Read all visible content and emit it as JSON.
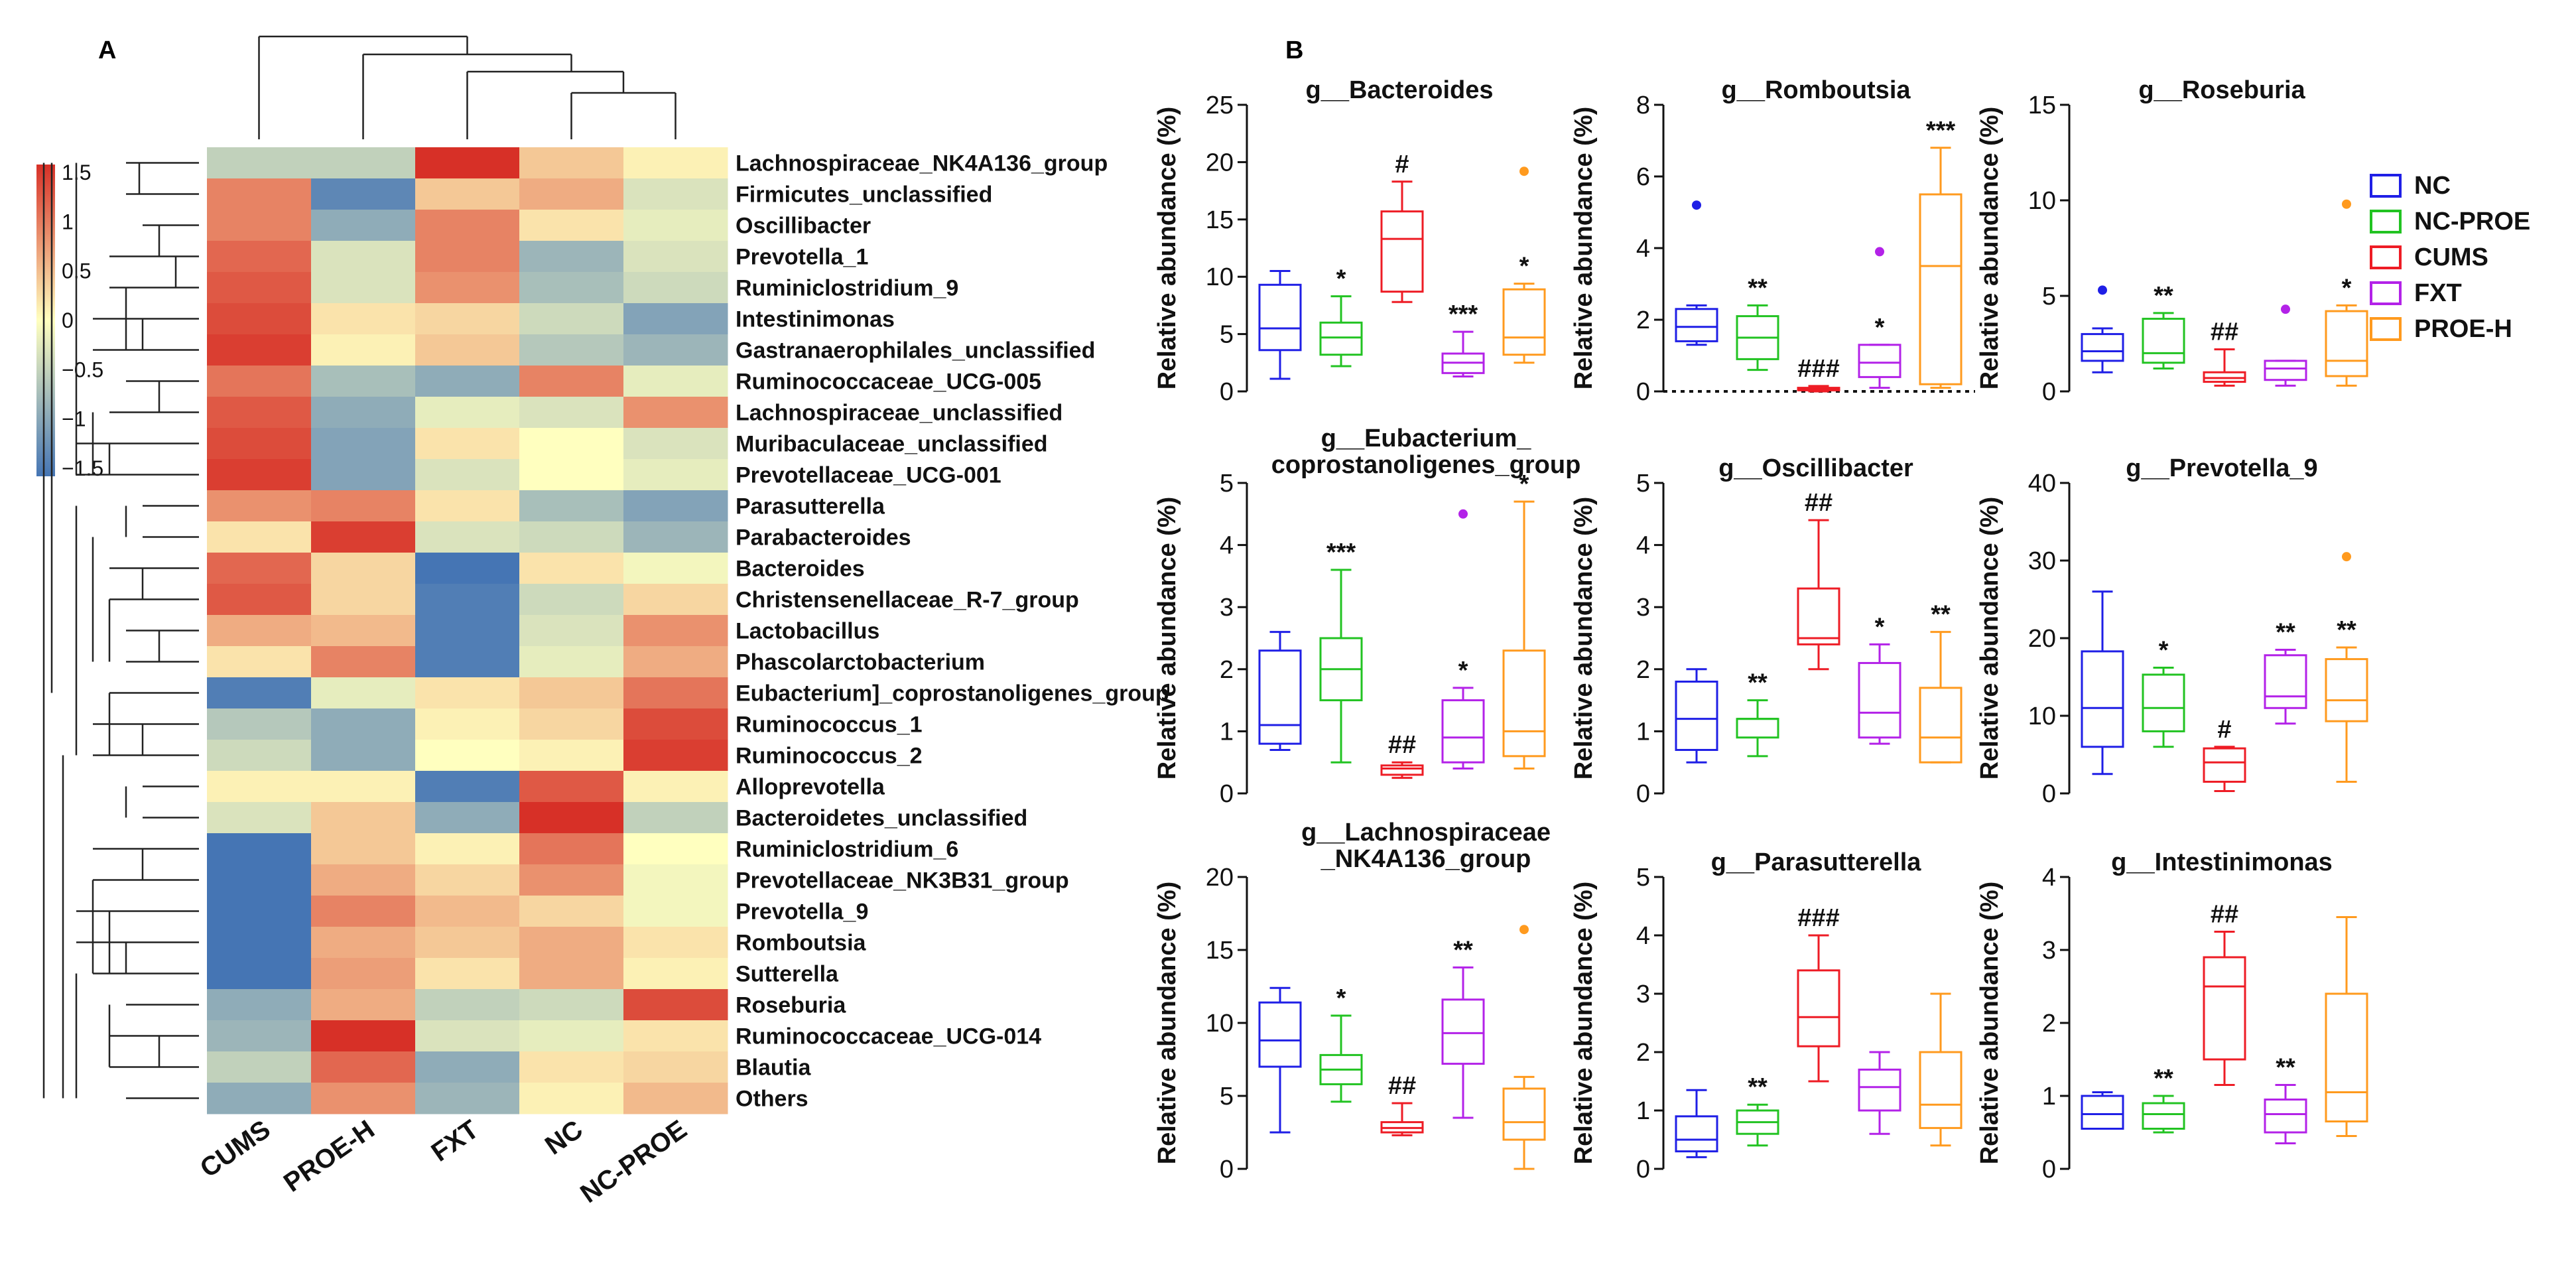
{
  "panels": {
    "a": "A",
    "b": "B"
  },
  "chart_data": [
    {
      "type": "heatmap",
      "title": "",
      "columns": [
        "CUMS",
        "PROE-H",
        "FXT",
        "NC",
        "NC-PROE"
      ],
      "rows": [
        "Lachnospiraceae_NK4A136_group",
        "Firmicutes_unclassified",
        "Oscillibacter",
        "Prevotella_1",
        "Ruminiclostridium_9",
        "Intestinimonas",
        "Gastranaerophilales_unclassified",
        "Ruminococcaceae_UCG-005",
        "Lachnospiraceae_unclassified",
        "Muribaculaceae_unclassified",
        "Prevotellaceae_UCG-001",
        "Parasutterella",
        "Parabacteroides",
        "Bacteroides",
        "Christensenellaceae_R-7_group",
        "Lactobacillus",
        "Phascolarctobacterium",
        "Eubacterium]_coprostanoligenes_group",
        "Ruminococcus_1",
        "Ruminococcus_2",
        "Alloprevotella",
        "Bacteroidetes_unclassified",
        "Ruminiclostridium_6",
        "Prevotellaceae_NK3B31_group",
        "Prevotella_9",
        "Romboutsia",
        "Sutterella",
        "Roseburia",
        "Ruminococcaceae_UCG-014",
        "Blautia",
        "Others"
      ],
      "values": [
        [
          -0.5,
          -0.5,
          1.5,
          0.4,
          0.1
        ],
        [
          0.9,
          -1.3,
          0.4,
          0.6,
          -0.3
        ],
        [
          0.9,
          -0.9,
          0.9,
          0.2,
          -0.2
        ],
        [
          1.1,
          -0.3,
          0.9,
          -0.8,
          -0.3
        ],
        [
          1.2,
          -0.3,
          0.8,
          -0.7,
          -0.4
        ],
        [
          1.3,
          0.2,
          0.3,
          -0.4,
          -1.0
        ],
        [
          1.4,
          0.1,
          0.4,
          -0.6,
          -0.8
        ],
        [
          1.0,
          -0.7,
          -0.9,
          0.9,
          -0.2
        ],
        [
          1.2,
          -0.9,
          -0.2,
          -0.3,
          0.8
        ],
        [
          1.3,
          -1.0,
          0.2,
          0.0,
          -0.3
        ],
        [
          1.4,
          -1.0,
          -0.3,
          0.0,
          -0.2
        ],
        [
          0.8,
          0.9,
          0.2,
          -0.7,
          -1.0
        ],
        [
          0.2,
          1.4,
          -0.3,
          -0.4,
          -0.8
        ],
        [
          1.1,
          0.3,
          -1.5,
          0.2,
          -0.1
        ],
        [
          1.2,
          0.3,
          -1.4,
          -0.4,
          0.3
        ],
        [
          0.6,
          0.5,
          -1.4,
          -0.3,
          0.8
        ],
        [
          0.2,
          0.9,
          -1.4,
          -0.2,
          0.6
        ],
        [
          -1.4,
          -0.2,
          0.2,
          0.4,
          1.0
        ],
        [
          -0.6,
          -0.9,
          0.1,
          0.3,
          1.3
        ],
        [
          -0.4,
          -0.9,
          0.0,
          0.1,
          1.4
        ],
        [
          0.1,
          0.1,
          -1.4,
          1.2,
          0.1
        ],
        [
          -0.3,
          0.4,
          -0.9,
          1.5,
          -0.5
        ],
        [
          -1.5,
          0.4,
          0.1,
          1.0,
          0.0
        ],
        [
          -1.5,
          0.6,
          0.3,
          0.8,
          -0.1
        ],
        [
          -1.5,
          0.9,
          0.5,
          0.3,
          -0.1
        ],
        [
          -1.6,
          0.6,
          0.4,
          0.6,
          0.2
        ],
        [
          -1.6,
          0.7,
          0.2,
          0.6,
          0.1
        ],
        [
          -0.9,
          0.6,
          -0.5,
          -0.4,
          1.3
        ],
        [
          -0.8,
          1.6,
          -0.3,
          -0.2,
          0.2
        ],
        [
          -0.5,
          1.1,
          -0.9,
          0.2,
          0.3
        ],
        [
          -0.9,
          0.8,
          -0.8,
          0.1,
          0.5
        ]
      ],
      "color_scale": {
        "ticks": [
          "1.5",
          "1",
          "0.5",
          "0",
          "−0.5",
          "−1",
          "−1.5"
        ],
        "low": "#4575b4",
        "mid": "#ffffbf",
        "high": "#d73027",
        "min": -1.5,
        "max": 1.5
      },
      "row_dendrogram": {
        "leaves": 31
      },
      "column_dendrogram": {
        "leaves": 5
      }
    },
    {
      "type": "box",
      "ylabel": "Relative abundance (%)",
      "groups": [
        "NC",
        "NC-PROE",
        "CUMS",
        "FXT",
        "PROE-H"
      ],
      "group_colors": [
        "#1f1fe6",
        "#22c322",
        "#ee1c25",
        "#b322e8",
        "#ff9a1e"
      ],
      "legend": {
        "position": "right",
        "entries": [
          "NC",
          "NC-PROE",
          "CUMS",
          "FXT",
          "PROE-H"
        ]
      },
      "panels": [
        {
          "title": "g__Bacteroides",
          "ylim": [
            0,
            25
          ],
          "ticks": [
            0,
            5,
            10,
            15,
            20,
            25
          ],
          "boxes": [
            {
              "min": 1.1,
              "q1": 3.6,
              "median": 5.5,
              "q3": 9.3,
              "max": 10.5,
              "outliers": [],
              "mark": ""
            },
            {
              "min": 2.2,
              "q1": 3.2,
              "median": 4.7,
              "q3": 6.0,
              "max": 8.3,
              "outliers": [],
              "mark": "*"
            },
            {
              "min": 7.8,
              "q1": 8.7,
              "median": 13.3,
              "q3": 15.7,
              "max": 18.3,
              "outliers": [],
              "mark": "#"
            },
            {
              "min": 1.3,
              "q1": 1.6,
              "median": 2.5,
              "q3": 3.3,
              "max": 5.2,
              "outliers": [],
              "mark": "***"
            },
            {
              "min": 2.5,
              "q1": 3.2,
              "median": 4.7,
              "q3": 8.9,
              "max": 9.4,
              "outliers": [
                19.2
              ],
              "mark": "*"
            }
          ]
        },
        {
          "title": "g__Romboutsia",
          "ylim": [
            0,
            8
          ],
          "ticks": [
            0,
            2,
            4,
            6,
            8
          ],
          "dashed_zero": true,
          "boxes": [
            {
              "min": 1.3,
              "q1": 1.4,
              "median": 1.8,
              "q3": 2.3,
              "max": 2.4,
              "outliers": [
                5.2
              ],
              "mark": ""
            },
            {
              "min": 0.6,
              "q1": 0.9,
              "median": 1.5,
              "q3": 2.1,
              "max": 2.4,
              "outliers": [],
              "mark": "**"
            },
            {
              "min": 0.0,
              "q1": 0.03,
              "median": 0.06,
              "q3": 0.1,
              "max": 0.15,
              "outliers": [],
              "mark": "###"
            },
            {
              "min": 0.1,
              "q1": 0.4,
              "median": 0.8,
              "q3": 1.3,
              "max": 1.3,
              "outliers": [
                3.9
              ],
              "mark": "*"
            },
            {
              "min": 0.1,
              "q1": 0.2,
              "median": 3.5,
              "q3": 5.5,
              "max": 6.8,
              "outliers": [],
              "mark": "***"
            }
          ]
        },
        {
          "title": "g__Roseburia",
          "ylim": [
            0,
            15
          ],
          "ticks": [
            0,
            5,
            10,
            15
          ],
          "boxes": [
            {
              "min": 1.0,
              "q1": 1.6,
              "median": 2.1,
              "q3": 3.0,
              "max": 3.3,
              "outliers": [
                5.3
              ],
              "mark": ""
            },
            {
              "min": 1.2,
              "q1": 1.5,
              "median": 2.0,
              "q3": 3.8,
              "max": 4.1,
              "outliers": [],
              "mark": "**"
            },
            {
              "min": 0.3,
              "q1": 0.5,
              "median": 0.7,
              "q3": 1.0,
              "max": 2.2,
              "outliers": [],
              "mark": "##"
            },
            {
              "min": 0.3,
              "q1": 0.6,
              "median": 1.2,
              "q3": 1.6,
              "max": 1.6,
              "outliers": [
                4.3
              ],
              "mark": ""
            },
            {
              "min": 0.3,
              "q1": 0.8,
              "median": 1.6,
              "q3": 4.2,
              "max": 4.5,
              "outliers": [
                9.8
              ],
              "mark": "*"
            }
          ]
        },
        {
          "title": "g__Eubacterium_",
          "title2": "coprostanoligenes_group",
          "ylim": [
            0,
            5
          ],
          "ticks": [
            0,
            1,
            2,
            3,
            4,
            5
          ],
          "boxes": [
            {
              "min": 0.7,
              "q1": 0.8,
              "median": 1.1,
              "q3": 2.3,
              "max": 2.6,
              "outliers": [],
              "mark": ""
            },
            {
              "min": 0.5,
              "q1": 1.5,
              "median": 2.0,
              "q3": 2.5,
              "max": 3.6,
              "outliers": [],
              "mark": "***"
            },
            {
              "min": 0.25,
              "q1": 0.3,
              "median": 0.4,
              "q3": 0.45,
              "max": 0.5,
              "outliers": [],
              "mark": "##"
            },
            {
              "min": 0.4,
              "q1": 0.5,
              "median": 0.9,
              "q3": 1.5,
              "max": 1.7,
              "outliers": [
                4.5
              ],
              "mark": "*"
            },
            {
              "min": 0.4,
              "q1": 0.6,
              "median": 1.0,
              "q3": 2.3,
              "max": 4.7,
              "outliers": [],
              "mark": "*"
            }
          ]
        },
        {
          "title": "g__Oscillibacter",
          "ylim": [
            0,
            5
          ],
          "ticks": [
            0,
            1,
            2,
            3,
            4,
            5
          ],
          "boxes": [
            {
              "min": 0.5,
              "q1": 0.7,
              "median": 1.2,
              "q3": 1.8,
              "max": 2.0,
              "outliers": [],
              "mark": ""
            },
            {
              "min": 0.6,
              "q1": 0.9,
              "median": 1.2,
              "q3": 1.2,
              "max": 1.5,
              "outliers": [],
              "mark": "**"
            },
            {
              "min": 2.0,
              "q1": 2.4,
              "median": 2.5,
              "q3": 3.3,
              "max": 4.4,
              "outliers": [],
              "mark": "##"
            },
            {
              "min": 0.8,
              "q1": 0.9,
              "median": 1.3,
              "q3": 2.1,
              "max": 2.4,
              "outliers": [],
              "mark": "*"
            },
            {
              "min": 0.5,
              "q1": 0.5,
              "median": 0.9,
              "q3": 1.7,
              "max": 2.6,
              "outliers": [],
              "mark": "**"
            }
          ]
        },
        {
          "title": "g__Prevotella_9",
          "ylim": [
            0,
            40
          ],
          "ticks": [
            0,
            10,
            20,
            30,
            40
          ],
          "boxes": [
            {
              "min": 2.5,
              "q1": 6.0,
              "median": 11.0,
              "q3": 18.3,
              "max": 26.0,
              "outliers": [],
              "mark": ""
            },
            {
              "min": 6.0,
              "q1": 8.0,
              "median": 11.0,
              "q3": 15.3,
              "max": 16.2,
              "outliers": [],
              "mark": "*"
            },
            {
              "min": 0.3,
              "q1": 1.5,
              "median": 4.0,
              "q3": 5.8,
              "max": 6.0,
              "outliers": [],
              "mark": "#"
            },
            {
              "min": 9.0,
              "q1": 11.0,
              "median": 12.5,
              "q3": 17.8,
              "max": 18.5,
              "outliers": [],
              "mark": "**"
            },
            {
              "min": 1.5,
              "q1": 9.3,
              "median": 12.0,
              "q3": 17.3,
              "max": 18.8,
              "outliers": [
                30.5
              ],
              "mark": "**"
            }
          ]
        },
        {
          "title": "g__Lachnospiraceae",
          "title2": "_NK4A136_group",
          "ylim": [
            0,
            20
          ],
          "ticks": [
            0,
            5,
            10,
            15,
            20
          ],
          "boxes": [
            {
              "min": 2.5,
              "q1": 7.0,
              "median": 8.8,
              "q3": 11.4,
              "max": 12.4,
              "outliers": [],
              "mark": ""
            },
            {
              "min": 4.6,
              "q1": 5.8,
              "median": 6.8,
              "q3": 7.8,
              "max": 10.5,
              "outliers": [],
              "mark": "*"
            },
            {
              "min": 2.3,
              "q1": 2.5,
              "median": 2.8,
              "q3": 3.2,
              "max": 4.5,
              "outliers": [],
              "mark": "##"
            },
            {
              "min": 3.5,
              "q1": 7.2,
              "median": 9.3,
              "q3": 11.6,
              "max": 13.8,
              "outliers": [],
              "mark": "**"
            },
            {
              "min": 0.0,
              "q1": 2.0,
              "median": 3.2,
              "q3": 5.5,
              "max": 6.3,
              "outliers": [
                16.4
              ],
              "mark": ""
            }
          ]
        },
        {
          "title": "g__Parasutterella",
          "ylim": [
            0,
            5
          ],
          "ticks": [
            0,
            1,
            2,
            3,
            4,
            5
          ],
          "boxes": [
            {
              "min": 0.2,
              "q1": 0.3,
              "median": 0.5,
              "q3": 0.9,
              "max": 1.35,
              "outliers": [],
              "mark": ""
            },
            {
              "min": 0.4,
              "q1": 0.6,
              "median": 0.8,
              "q3": 1.0,
              "max": 1.1,
              "outliers": [],
              "mark": "**"
            },
            {
              "min": 1.5,
              "q1": 2.1,
              "median": 2.6,
              "q3": 3.4,
              "max": 4.0,
              "outliers": [],
              "mark": "###"
            },
            {
              "min": 0.6,
              "q1": 1.0,
              "median": 1.4,
              "q3": 1.7,
              "max": 2.0,
              "outliers": [],
              "mark": ""
            },
            {
              "min": 0.4,
              "q1": 0.7,
              "median": 1.1,
              "q3": 2.0,
              "max": 3.0,
              "outliers": [],
              "mark": ""
            }
          ]
        },
        {
          "title": "g__Intestinimonas",
          "ylim": [
            0,
            4
          ],
          "ticks": [
            0,
            1,
            2,
            3,
            4
          ],
          "boxes": [
            {
              "min": 0.55,
              "q1": 0.55,
              "median": 0.75,
              "q3": 1.0,
              "max": 1.05,
              "outliers": [],
              "mark": ""
            },
            {
              "min": 0.5,
              "q1": 0.55,
              "median": 0.75,
              "q3": 0.9,
              "max": 1.0,
              "outliers": [],
              "mark": "**"
            },
            {
              "min": 1.15,
              "q1": 1.5,
              "median": 2.5,
              "q3": 2.9,
              "max": 3.25,
              "outliers": [],
              "mark": "##"
            },
            {
              "min": 0.35,
              "q1": 0.5,
              "median": 0.75,
              "q3": 0.95,
              "max": 1.15,
              "outliers": [],
              "mark": "**"
            },
            {
              "min": 0.45,
              "q1": 0.65,
              "median": 1.05,
              "q3": 2.4,
              "max": 3.45,
              "outliers": [],
              "mark": ""
            }
          ]
        }
      ]
    }
  ]
}
